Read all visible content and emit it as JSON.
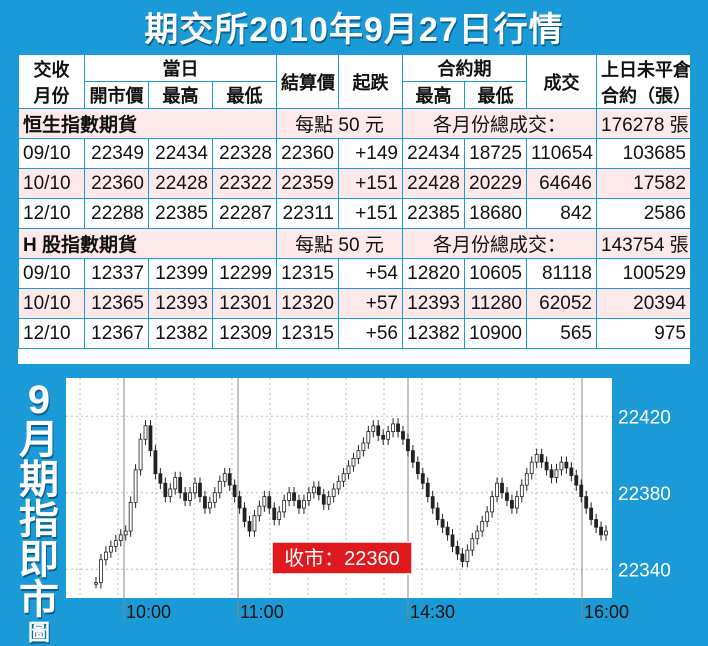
{
  "title": "期交所2010年9月27日行情",
  "table": {
    "headers": {
      "month_l1": "交收",
      "month_l2": "月份",
      "today_group": "當日",
      "open": "開市價",
      "high": "最高",
      "low": "最低",
      "settle": "結算價",
      "change": "起跌",
      "contract_group": "合約期",
      "c_high": "最高",
      "c_low": "最低",
      "volume": "成交",
      "oi_l1": "上日未平倉",
      "oi_l2": "合約（張）"
    },
    "sections": [
      {
        "name": "恒生指數期貨",
        "unit": "每點 50 元",
        "total_label": "各月份總成交：",
        "total_value": "176278 張",
        "rows": [
          {
            "month": "09/10",
            "open": "22349",
            "high": "22434",
            "low": "22328",
            "settle": "22360",
            "change": "+149",
            "c_high": "22434",
            "c_low": "18725",
            "volume": "110654",
            "oi": "103685"
          },
          {
            "month": "10/10",
            "open": "22360",
            "high": "22428",
            "low": "22322",
            "settle": "22359",
            "change": "+151",
            "c_high": "22428",
            "c_low": "20229",
            "volume": "64646",
            "oi": "17582"
          },
          {
            "month": "12/10",
            "open": "22288",
            "high": "22385",
            "low": "22287",
            "settle": "22311",
            "change": "+151",
            "c_high": "22385",
            "c_low": "18680",
            "volume": "842",
            "oi": "2586"
          }
        ]
      },
      {
        "name": "H 股指數期貨",
        "unit": "每點 50 元",
        "total_label": "各月份總成交：",
        "total_value": "143754 張",
        "rows": [
          {
            "month": "09/10",
            "open": "12337",
            "high": "12399",
            "low": "12299",
            "settle": "12315",
            "change": "+54",
            "c_high": "12820",
            "c_low": "10605",
            "volume": "81118",
            "oi": "100529"
          },
          {
            "month": "10/10",
            "open": "12365",
            "high": "12393",
            "low": "12301",
            "settle": "12320",
            "change": "+57",
            "c_high": "12393",
            "c_low": "11280",
            "volume": "62052",
            "oi": "20394"
          },
          {
            "month": "12/10",
            "open": "12367",
            "high": "12382",
            "low": "12309",
            "settle": "12315",
            "change": "+56",
            "c_high": "12382",
            "c_low": "10900",
            "volume": "565",
            "oi": "975"
          }
        ]
      }
    ]
  },
  "side_title": [
    "9",
    "月",
    "期",
    "指",
    "即",
    "市",
    "圖"
  ],
  "colors": {
    "background": "#1a9ad6",
    "row_highlight": "#fde9ea",
    "label_red": "#e0191f",
    "candle": "#222222"
  },
  "chart_data": {
    "type": "line",
    "title": "",
    "xlabel": "",
    "ylabel": "",
    "x_ticks": [
      "10:00",
      "11:00",
      "14:30",
      "16:00"
    ],
    "y_ticks": [
      22340,
      22380,
      22420
    ],
    "ylim": [
      22325,
      22440
    ],
    "close_label": "收市：22360",
    "grid": true,
    "series": [
      {
        "values": [
          22333,
          22345,
          22349,
          22352,
          22355,
          22358,
          22360,
          22375,
          22392,
          22408,
          22415,
          22402,
          22390,
          22385,
          22378,
          22382,
          22388,
          22380,
          22376,
          22380,
          22385,
          22378,
          22372,
          22375,
          22380,
          22386,
          22390,
          22384,
          22378,
          22372,
          22365,
          22360,
          22368,
          22373,
          22378,
          22372,
          22366,
          22370,
          22376,
          22380,
          22376,
          22372,
          22376,
          22380,
          22383,
          22379,
          22374,
          22378,
          22382,
          22386,
          22390,
          22394,
          22398,
          22402,
          22406,
          22412,
          22415,
          22410,
          22408,
          22412,
          22416,
          22412,
          22408,
          22402,
          22396,
          22390,
          22385,
          22378,
          22372,
          22366,
          22362,
          22358,
          22352,
          22348,
          22344,
          22350,
          22356,
          22360,
          22365,
          22370,
          22378,
          22385,
          22380,
          22376,
          22372,
          22378,
          22384,
          22390,
          22396,
          22400,
          22396,
          22392,
          22388,
          22392,
          22396,
          22393,
          22389,
          22384,
          22378,
          22372,
          22366,
          22362,
          22358,
          22360
        ]
      }
    ]
  }
}
